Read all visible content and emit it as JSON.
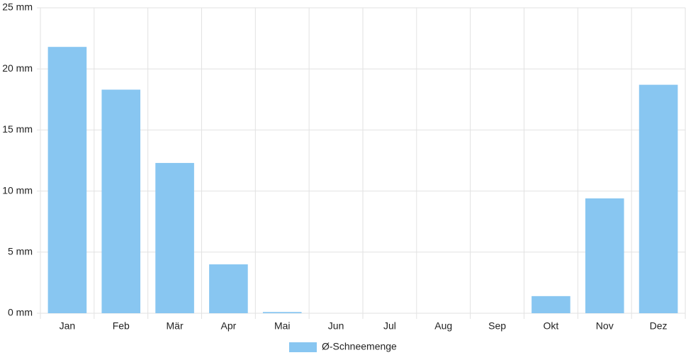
{
  "chart_data": {
    "type": "bar",
    "categories": [
      "Jan",
      "Feb",
      "Mär",
      "Apr",
      "Mai",
      "Jun",
      "Jul",
      "Aug",
      "Sep",
      "Okt",
      "Nov",
      "Dez"
    ],
    "series": [
      {
        "name": "Ø-Schneemenge",
        "color": "#88c6f1",
        "values": [
          21.8,
          18.3,
          12.3,
          4.0,
          0.1,
          0,
          0,
          0,
          0,
          1.4,
          9.4,
          18.7
        ]
      }
    ],
    "ylim": [
      0,
      25
    ],
    "yticks": [
      {
        "value": 0,
        "label": "0 mm"
      },
      {
        "value": 5,
        "label": "5 mm"
      },
      {
        "value": 10,
        "label": "10 mm"
      },
      {
        "value": 15,
        "label": "15 mm"
      },
      {
        "value": 20,
        "label": "20 mm"
      },
      {
        "value": 25,
        "label": "25 mm"
      }
    ],
    "grid": true,
    "legend": "bottom"
  }
}
